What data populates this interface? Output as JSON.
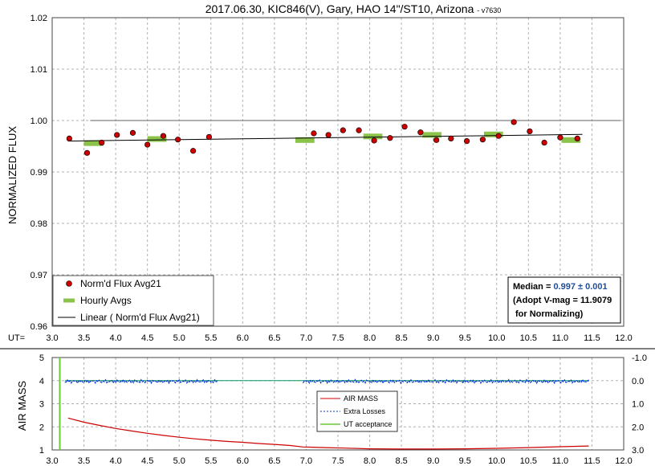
{
  "chart_data": [
    {
      "type": "scatter",
      "title": "2017.06.30, KIC846(V), Gary, HAO 14\"/ST10, Arizona",
      "title_suffix": "- v7630",
      "ylabel": "NORMALIZED FLUX",
      "x_axis_label": "UT=",
      "xlim": [
        3.0,
        12.0
      ],
      "ylim": [
        0.96,
        1.02
      ],
      "x_ticks": [
        "3.0",
        "3.5",
        "4.0",
        "4.5",
        "5.0",
        "5.5",
        "6.0",
        "6.5",
        "7.0",
        "7.5",
        "8.0",
        "8.5",
        "9.0",
        "9.5",
        "10.0",
        "10.5",
        "11.0",
        "11.5",
        "12.0"
      ],
      "y_ticks": [
        "0.96",
        "0.97",
        "0.98",
        "0.99",
        "1.00",
        "1.01",
        "1.02"
      ],
      "grid": true,
      "colors": {
        "points": "#cc0000",
        "hourly": "#8bc34a",
        "linear": "#000000",
        "reference": "#808080",
        "median_value": "#1f4e9e"
      },
      "series": [
        {
          "name": "Norm'd Flux Avg21",
          "points": [
            [
              3.27,
              0.9965
            ],
            [
              3.55,
              0.9937
            ],
            [
              3.78,
              0.9957
            ],
            [
              4.02,
              0.9972
            ],
            [
              4.27,
              0.9976
            ],
            [
              4.5,
              0.9953
            ],
            [
              4.75,
              0.997
            ],
            [
              4.98,
              0.9963
            ],
            [
              5.22,
              0.9941
            ],
            [
              5.47,
              0.9968
            ],
            [
              7.12,
              0.9975
            ],
            [
              7.35,
              0.9972
            ],
            [
              7.58,
              0.9981
            ],
            [
              7.83,
              0.9981
            ],
            [
              8.07,
              0.9961
            ],
            [
              8.32,
              0.9966
            ],
            [
              8.55,
              0.9988
            ],
            [
              8.8,
              0.9977
            ],
            [
              9.05,
              0.9962
            ],
            [
              9.28,
              0.9965
            ],
            [
              9.53,
              0.996
            ],
            [
              9.78,
              0.9963
            ],
            [
              10.03,
              0.997
            ],
            [
              10.27,
              0.9997
            ],
            [
              10.52,
              0.9979
            ],
            [
              10.75,
              0.9957
            ],
            [
              11.0,
              0.9967
            ],
            [
              11.27,
              0.9965
            ]
          ]
        },
        {
          "name": "Hourly Avgs",
          "points": [
            [
              3.65,
              0.9956
            ],
            [
              4.65,
              0.9964
            ],
            [
              6.98,
              0.9962
            ],
            [
              8.05,
              0.9969
            ],
            [
              8.98,
              0.9972
            ],
            [
              9.95,
              0.9973
            ],
            [
              11.17,
              0.9962
            ]
          ]
        },
        {
          "name": "Linear ( Norm'd Flux Avg21)",
          "line": [
            [
              3.25,
              0.996
            ],
            [
              11.35,
              0.9973
            ]
          ]
        }
      ],
      "reference_line": {
        "y": 1.0,
        "x": [
          3.6,
          11.95
        ]
      },
      "legend": [
        {
          "label": "Norm'd Flux Avg21",
          "symbol": "dot"
        },
        {
          "label": "Hourly Avgs",
          "symbol": "dash"
        },
        {
          "label": "Linear ( Norm'd Flux Avg21)",
          "symbol": "line"
        }
      ],
      "legend_position": "bottom-left",
      "annotation": {
        "median_label": "Median =",
        "median_value": "0.997 ± 0.001",
        "line2": "(Adopt V-mag = 11.9079",
        "line3": "for Normalizing)"
      }
    },
    {
      "type": "line",
      "ylabel": "AIR MASS",
      "xlim": [
        3.0,
        12.0
      ],
      "ylim": [
        1,
        5
      ],
      "y2lim": [
        -1.0,
        3.0
      ],
      "x_ticks": [
        "3.0",
        "3.5",
        "4.0",
        "4.5",
        "5.0",
        "5.5",
        "6.0",
        "6.5",
        "7.0",
        "7.5",
        "8.0",
        "8.5",
        "9.0",
        "9.5",
        "10.0",
        "10.5",
        "11.0",
        "11.5",
        "12.0"
      ],
      "y_ticks": [
        "1",
        "2",
        "3",
        "4",
        "5"
      ],
      "y2_ticks": [
        "-1.0",
        "0.0",
        "1.0",
        "2.0",
        "3.0"
      ],
      "grid": true,
      "colors": {
        "airmass": "#cc0000",
        "extra_losses": "#0033cc",
        "ut_acceptance": "#66cc33",
        "green_flat": "#009966"
      },
      "series": [
        {
          "name": "AIR MASS",
          "points": [
            [
              3.25,
              2.38
            ],
            [
              3.5,
              2.2
            ],
            [
              3.75,
              2.06
            ],
            [
              4.0,
              1.93
            ],
            [
              4.25,
              1.82
            ],
            [
              4.5,
              1.72
            ],
            [
              4.75,
              1.63
            ],
            [
              5.0,
              1.55
            ],
            [
              5.25,
              1.48
            ],
            [
              5.5,
              1.42
            ],
            [
              5.75,
              1.37
            ],
            [
              6.0,
              1.33
            ],
            [
              6.25,
              1.28
            ],
            [
              6.5,
              1.24
            ],
            [
              6.75,
              1.19
            ],
            [
              6.95,
              1.13
            ],
            [
              7.3,
              1.1
            ],
            [
              7.6,
              1.08
            ],
            [
              8.0,
              1.05
            ],
            [
              8.5,
              1.04
            ],
            [
              9.0,
              1.04
            ],
            [
              9.5,
              1.05
            ],
            [
              10.0,
              1.07
            ],
            [
              10.5,
              1.1
            ],
            [
              11.0,
              1.14
            ],
            [
              11.45,
              1.17
            ]
          ]
        },
        {
          "name": "Extra Losses",
          "segments": [
            [
              3.2,
              5.6
            ],
            [
              6.95,
              11.45
            ]
          ],
          "level": 0.0
        },
        {
          "name": "UT acceptance",
          "x": 3.12
        }
      ],
      "legend": [
        {
          "label": "AIR MASS",
          "symbol": "line"
        },
        {
          "label": "Extra Losses",
          "symbol": "dashed"
        },
        {
          "label": "UT acceptance",
          "symbol": "line"
        }
      ],
      "legend_position": "center"
    }
  ]
}
